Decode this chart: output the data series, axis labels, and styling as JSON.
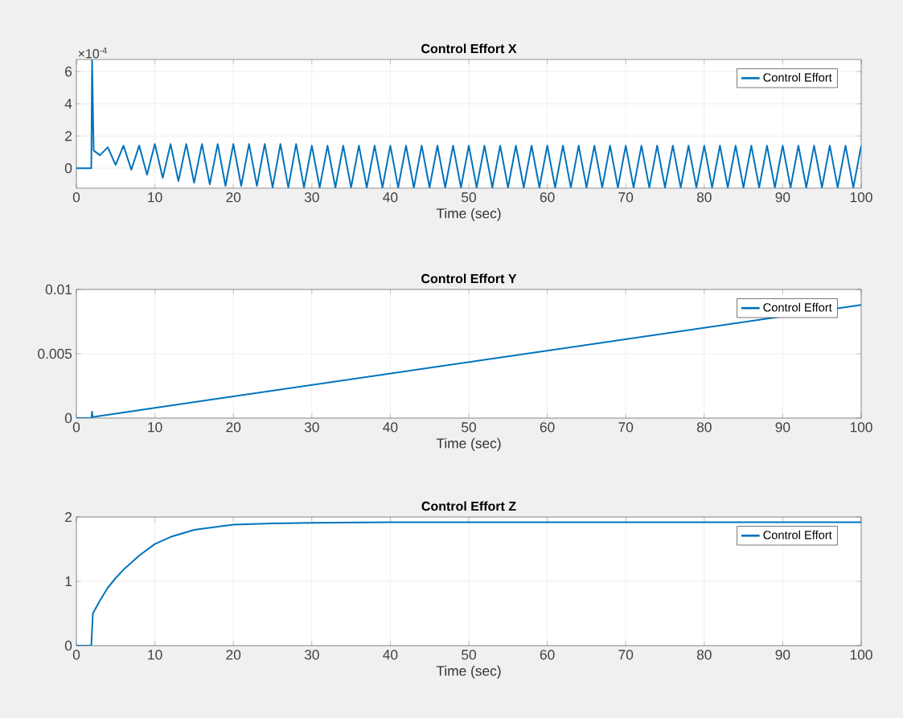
{
  "chart_data": [
    {
      "type": "line",
      "title": "Control Effort X",
      "xlabel": "Time (sec)",
      "annotations": [
        "×10$^{-4}$"
      ],
      "grid": true,
      "legend": "top right",
      "xlim": [
        0,
        100
      ],
      "xticks": [
        0,
        10,
        20,
        30,
        40,
        50,
        60,
        70,
        80,
        90,
        100
      ],
      "ylim": [
        -1.24,
        6.75
      ],
      "yticks": [
        0,
        2,
        4,
        6
      ],
      "series": [
        {
          "name": "Control Effort",
          "color": "#0072bd",
          "x": [
            0,
            1.9,
            2.0,
            2.2,
            3,
            4,
            5,
            6,
            7,
            8,
            9,
            10,
            11,
            12,
            13,
            14,
            15,
            16,
            17,
            18,
            19,
            20,
            21,
            22,
            23,
            24,
            25,
            26,
            27,
            28,
            29,
            30,
            31,
            32,
            33,
            34,
            35,
            36,
            37,
            38,
            39,
            40,
            41,
            42,
            43,
            44,
            45,
            46,
            47,
            48,
            49,
            50,
            51,
            52,
            53,
            54,
            55,
            56,
            57,
            58,
            59,
            60,
            61,
            62,
            63,
            64,
            65,
            66,
            67,
            68,
            69,
            70,
            71,
            72,
            73,
            74,
            75,
            76,
            77,
            78,
            79,
            80,
            81,
            82,
            83,
            84,
            85,
            86,
            87,
            88,
            89,
            90,
            91,
            92,
            93,
            94,
            95,
            96,
            97,
            98,
            99,
            100
          ],
          "values": [
            0,
            0,
            6.7,
            1.1,
            0.8,
            1.3,
            0.2,
            1.4,
            -0.1,
            1.4,
            -0.4,
            1.5,
            -0.6,
            1.5,
            -0.8,
            1.5,
            -0.9,
            1.5,
            -1.0,
            1.5,
            -1.1,
            1.5,
            -1.1,
            1.5,
            -1.1,
            1.5,
            -1.2,
            1.5,
            -1.2,
            1.5,
            -1.2,
            1.4,
            -1.2,
            1.4,
            -1.2,
            1.4,
            -1.2,
            1.4,
            -1.2,
            1.4,
            -1.2,
            1.4,
            -1.2,
            1.4,
            -1.2,
            1.4,
            -1.2,
            1.4,
            -1.2,
            1.4,
            -1.2,
            1.4,
            -1.2,
            1.4,
            -1.2,
            1.4,
            -1.2,
            1.4,
            -1.2,
            1.4,
            -1.2,
            1.4,
            -1.2,
            1.4,
            -1.2,
            1.4,
            -1.2,
            1.4,
            -1.2,
            1.4,
            -1.2,
            1.4,
            -1.2,
            1.4,
            -1.2,
            1.4,
            -1.2,
            1.4,
            -1.2,
            1.4,
            -1.2,
            1.4,
            -1.2,
            1.4,
            -1.2,
            1.4,
            -1.2,
            1.4,
            -1.2,
            1.4,
            -1.2,
            1.4,
            -1.2,
            1.4,
            -1.2,
            1.4,
            -1.2,
            1.4,
            -1.2,
            1.4,
            -1.2,
            1.4
          ]
        }
      ]
    },
    {
      "type": "line",
      "title": "Control Effort Y",
      "xlabel": "Time (sec)",
      "grid": true,
      "legend": "top right",
      "xlim": [
        0,
        100
      ],
      "xticks": [
        0,
        10,
        20,
        30,
        40,
        50,
        60,
        70,
        80,
        90,
        100
      ],
      "ylim": [
        0,
        0.01
      ],
      "yticks": [
        0,
        0.005,
        0.01
      ],
      "series": [
        {
          "name": "Control Effort",
          "color": "#0072bd",
          "x": [
            0,
            1.9,
            2.0,
            2.05,
            2.2,
            100
          ],
          "values": [
            0,
            0,
            0.0005,
            0.0001,
            0.0001,
            0.0088
          ]
        }
      ]
    },
    {
      "type": "line",
      "title": "Control Effort Z",
      "xlabel": "Time (sec)",
      "grid": true,
      "legend": "top right",
      "xlim": [
        0,
        100
      ],
      "xticks": [
        0,
        10,
        20,
        30,
        40,
        50,
        60,
        70,
        80,
        90,
        100
      ],
      "ylim": [
        0,
        2
      ],
      "yticks": [
        0,
        1,
        2
      ],
      "series": [
        {
          "name": "Control Effort",
          "color": "#0072bd",
          "x": [
            0,
            1.9,
            2.1,
            3,
            4,
            5,
            6,
            8,
            10,
            12,
            15,
            20,
            25,
            30,
            40,
            100
          ],
          "values": [
            0,
            0,
            0.5,
            0.7,
            0.9,
            1.05,
            1.18,
            1.4,
            1.58,
            1.69,
            1.8,
            1.88,
            1.9,
            1.91,
            1.92,
            1.92
          ]
        }
      ]
    }
  ]
}
